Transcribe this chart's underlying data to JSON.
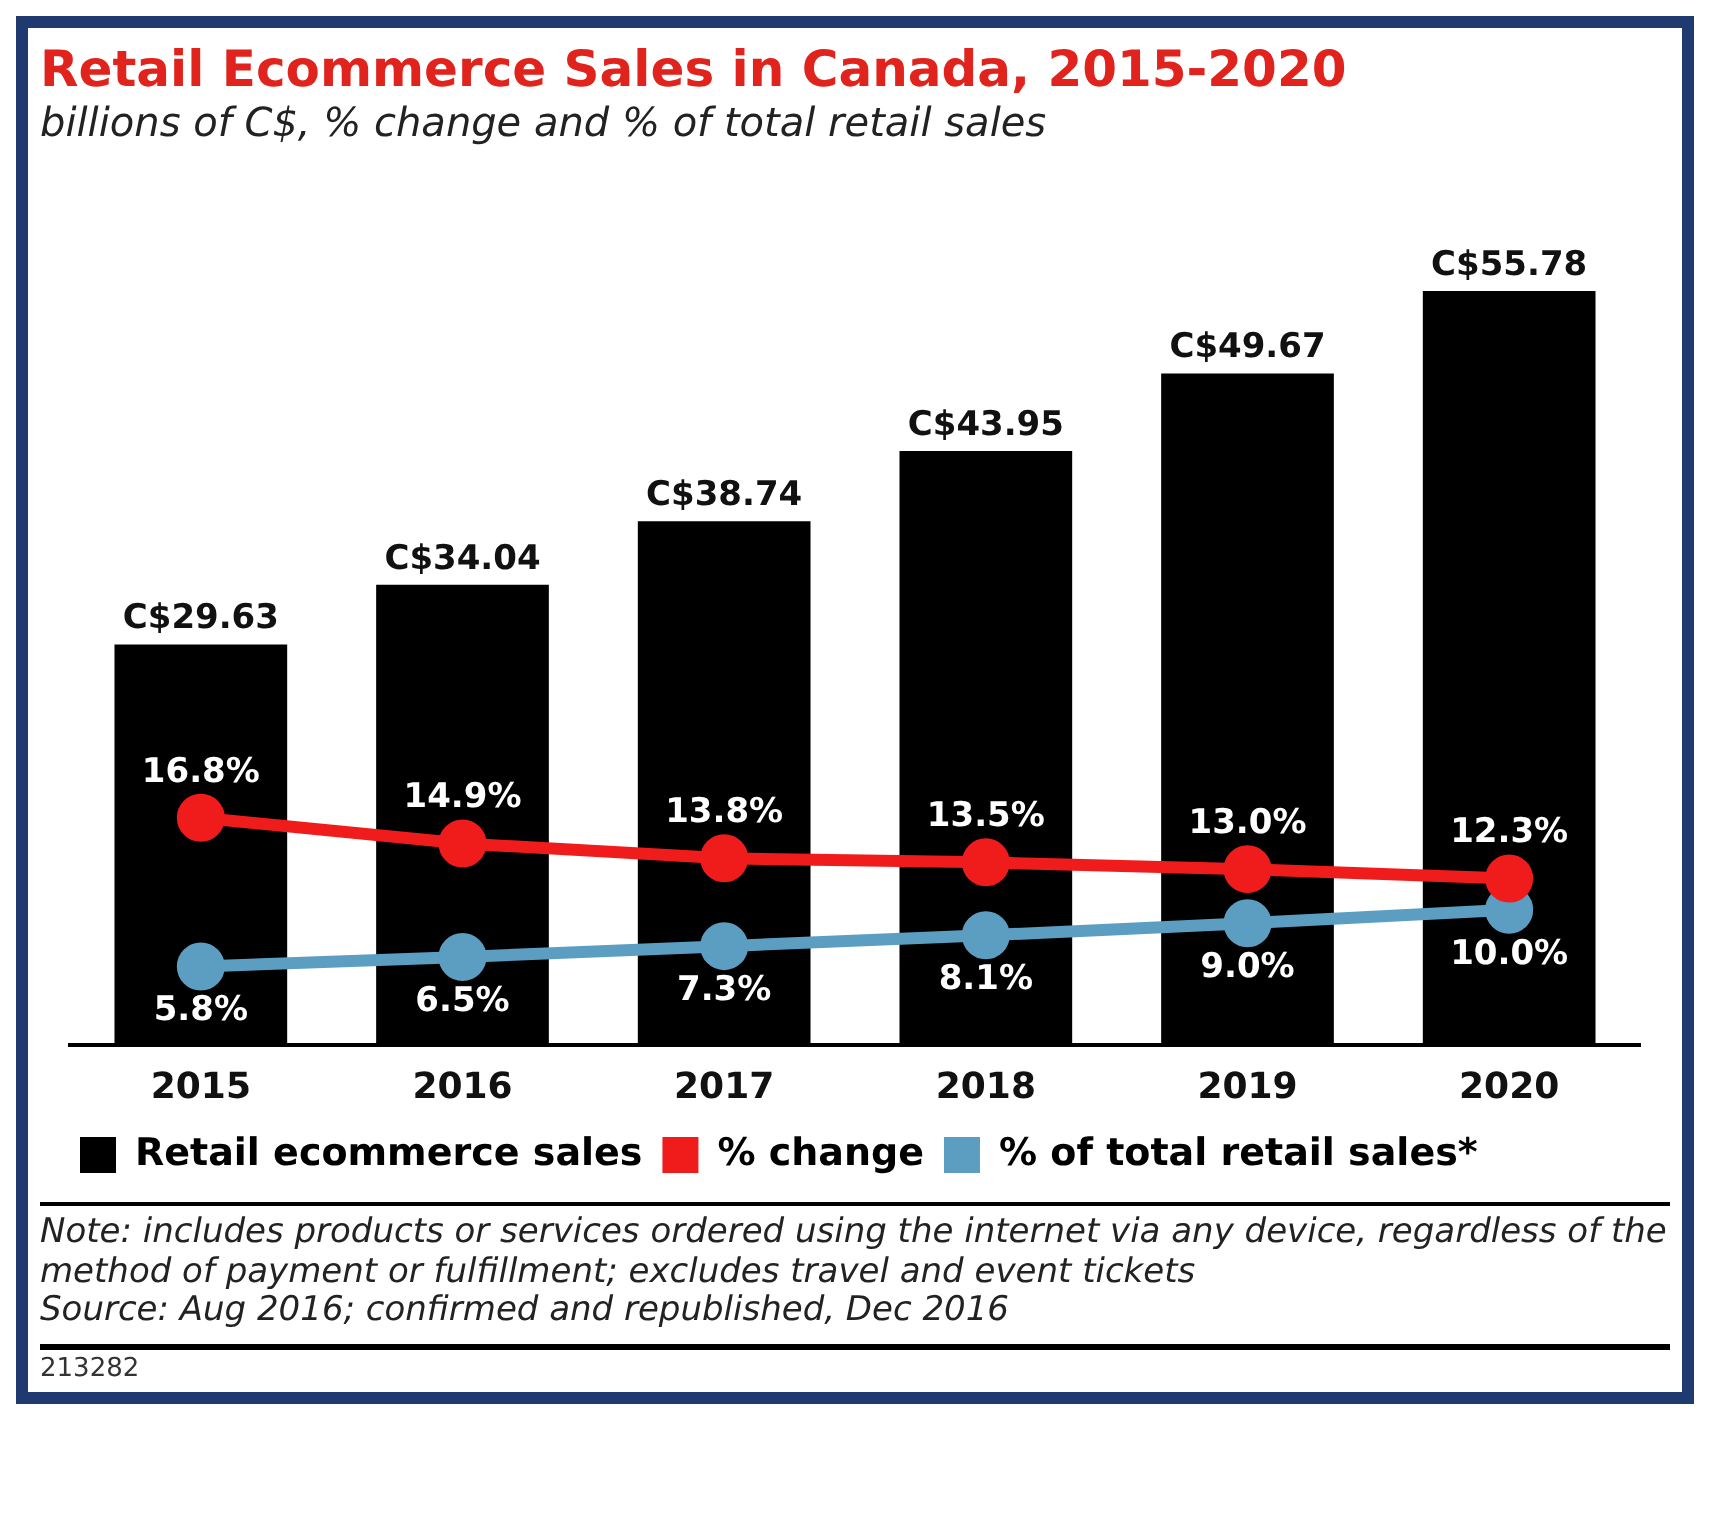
{
  "chart_data": {
    "type": "bar",
    "title": "Retail Ecommerce Sales in Canada, 2015-2020",
    "subtitle": "billions of C$, % change and % of total retail sales",
    "categories": [
      "2015",
      "2016",
      "2017",
      "2018",
      "2019",
      "2020"
    ],
    "series": [
      {
        "name": "Retail ecommerce sales",
        "color": "#000000",
        "values": [
          29.63,
          34.04,
          38.74,
          43.95,
          49.67,
          55.78
        ],
        "value_labels": [
          "C$29.63",
          "C$34.04",
          "C$38.74",
          "C$43.95",
          "C$49.67",
          "C$55.78"
        ]
      },
      {
        "name": "% change",
        "type": "line",
        "color": "#f01c1c",
        "values": [
          16.8,
          14.9,
          13.8,
          13.5,
          13.0,
          12.3
        ],
        "value_labels": [
          "16.8%",
          "14.9%",
          "13.8%",
          "13.5%",
          "13.0%",
          "12.3%"
        ]
      },
      {
        "name": "% of total retail sales*",
        "type": "line",
        "color": "#5b9ec2",
        "values": [
          5.8,
          6.5,
          7.3,
          8.1,
          9.0,
          10.0
        ],
        "value_labels": [
          "5.8%",
          "6.5%",
          "7.3%",
          "8.1%",
          "9.0%",
          "10.0%"
        ]
      }
    ],
    "tick_labels": "x",
    "grid": false,
    "legend": "bottom",
    "marker": "circle",
    "annotations": [
      "Note: includes products or services ordered using the internet via any device, regardless of the method of payment or fulfillment; excludes travel and event tickets",
      "Source: Aug 2016; confirmed and republished, Dec 2016",
      "213282"
    ]
  }
}
